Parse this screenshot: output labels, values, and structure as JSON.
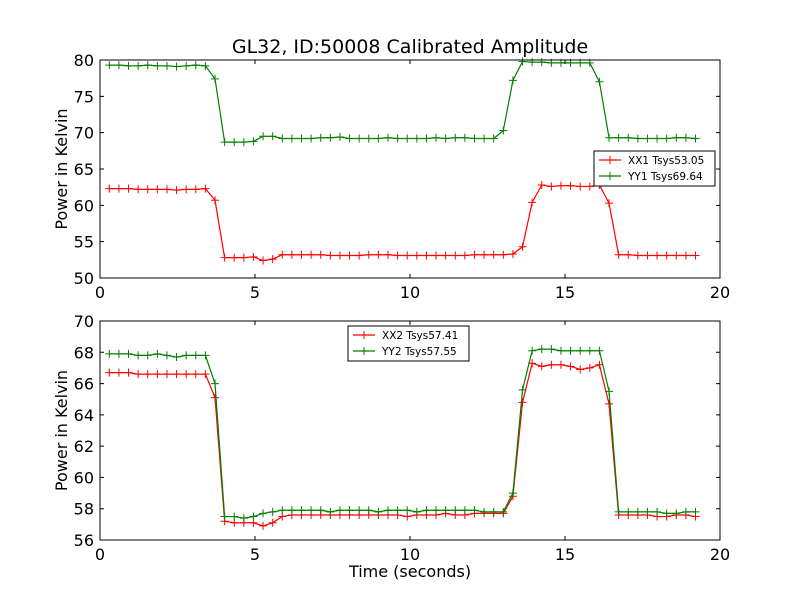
{
  "chart_data": [
    {
      "type": "line",
      "title": "GL32, ID:50008 Calibrated Amplitude",
      "xlabel": "",
      "ylabel": "Power in Kelvin",
      "xlim": [
        0,
        20
      ],
      "ylim": [
        50,
        80
      ],
      "xticks": [
        "0",
        "5",
        "10",
        "15",
        "20"
      ],
      "yticks": [
        "50",
        "55",
        "60",
        "65",
        "70",
        "75",
        "80"
      ],
      "grid": false,
      "legend_position": "center-right",
      "x": [
        0.3,
        0.61,
        0.92,
        1.23,
        1.54,
        1.85,
        2.16,
        2.47,
        2.78,
        3.09,
        3.4,
        3.71,
        4.02,
        4.33,
        4.64,
        4.95,
        5.26,
        5.57,
        5.88,
        6.19,
        6.5,
        6.81,
        7.12,
        7.43,
        7.74,
        8.05,
        8.36,
        8.67,
        8.98,
        9.29,
        9.6,
        9.91,
        10.22,
        10.53,
        10.84,
        11.15,
        11.46,
        11.77,
        12.08,
        12.39,
        12.7,
        13.01,
        13.32,
        13.63,
        13.94,
        14.25,
        14.56,
        14.87,
        15.18,
        15.49,
        15.8,
        16.11,
        16.42,
        16.73,
        17.04,
        17.35,
        17.66,
        17.97,
        18.28,
        18.59,
        18.9,
        19.21
      ],
      "series": [
        {
          "name": "XX1 Tsys53.05",
          "color": "#ff0000",
          "values": [
            62.3,
            62.3,
            62.3,
            62.2,
            62.2,
            62.2,
            62.2,
            62.1,
            62.2,
            62.2,
            62.3,
            60.7,
            52.8,
            52.8,
            52.8,
            52.9,
            52.4,
            52.6,
            53.2,
            53.2,
            53.2,
            53.2,
            53.2,
            53.1,
            53.1,
            53.1,
            53.1,
            53.2,
            53.2,
            53.2,
            53.1,
            53.1,
            53.1,
            53.1,
            53.1,
            53.1,
            53.1,
            53.1,
            53.2,
            53.2,
            53.2,
            53.2,
            53.3,
            54.3,
            60.4,
            62.8,
            62.6,
            62.7,
            62.7,
            62.6,
            62.6,
            62.8,
            60.3,
            53.2,
            53.2,
            53.1,
            53.1,
            53.1,
            53.1,
            53.1,
            53.1,
            53.1
          ]
        },
        {
          "name": "YY1 Tsys69.64",
          "color": "#008000",
          "values": [
            79.3,
            79.3,
            79.2,
            79.2,
            79.3,
            79.2,
            79.2,
            79.1,
            79.2,
            79.3,
            79.2,
            77.4,
            68.7,
            68.7,
            68.7,
            68.8,
            69.5,
            69.5,
            69.2,
            69.2,
            69.2,
            69.2,
            69.3,
            69.3,
            69.4,
            69.2,
            69.2,
            69.2,
            69.2,
            69.3,
            69.2,
            69.2,
            69.2,
            69.2,
            69.3,
            69.2,
            69.3,
            69.3,
            69.2,
            69.2,
            69.2,
            70.3,
            77.2,
            79.8,
            79.7,
            79.7,
            79.6,
            79.6,
            79.6,
            79.6,
            79.6,
            77.0,
            69.3,
            69.3,
            69.3,
            69.2,
            69.2,
            69.2,
            69.2,
            69.3,
            69.3,
            69.2
          ]
        }
      ]
    },
    {
      "type": "line",
      "title": "",
      "xlabel": "Time (seconds)",
      "ylabel": "Power in Kelvin",
      "xlim": [
        0,
        20
      ],
      "ylim": [
        56,
        70
      ],
      "xticks": [
        "0",
        "5",
        "10",
        "15",
        "20"
      ],
      "yticks": [
        "56",
        "58",
        "60",
        "62",
        "64",
        "66",
        "68",
        "70"
      ],
      "grid": false,
      "legend_position": "top-center",
      "x": [
        0.3,
        0.61,
        0.92,
        1.23,
        1.54,
        1.85,
        2.16,
        2.47,
        2.78,
        3.09,
        3.4,
        3.71,
        4.02,
        4.33,
        4.64,
        4.95,
        5.26,
        5.57,
        5.88,
        6.19,
        6.5,
        6.81,
        7.12,
        7.43,
        7.74,
        8.05,
        8.36,
        8.67,
        8.98,
        9.29,
        9.6,
        9.91,
        10.22,
        10.53,
        10.84,
        11.15,
        11.46,
        11.77,
        12.08,
        12.39,
        12.7,
        13.01,
        13.32,
        13.63,
        13.94,
        14.25,
        14.56,
        14.87,
        15.18,
        15.49,
        15.8,
        16.11,
        16.42,
        16.73,
        17.04,
        17.35,
        17.66,
        17.97,
        18.28,
        18.59,
        18.9,
        19.21
      ],
      "series": [
        {
          "name": "XX2 Tsys57.41",
          "color": "#ff0000",
          "values": [
            66.7,
            66.7,
            66.7,
            66.6,
            66.6,
            66.6,
            66.6,
            66.6,
            66.6,
            66.6,
            66.6,
            65.1,
            57.2,
            57.1,
            57.1,
            57.1,
            56.9,
            57.1,
            57.5,
            57.6,
            57.6,
            57.6,
            57.6,
            57.6,
            57.6,
            57.6,
            57.6,
            57.6,
            57.6,
            57.6,
            57.6,
            57.5,
            57.6,
            57.6,
            57.6,
            57.7,
            57.6,
            57.6,
            57.7,
            57.7,
            57.7,
            57.7,
            58.8,
            64.8,
            67.3,
            67.1,
            67.2,
            67.2,
            67.1,
            66.9,
            67.0,
            67.2,
            64.7,
            57.6,
            57.6,
            57.6,
            57.6,
            57.5,
            57.5,
            57.6,
            57.6,
            57.5
          ]
        },
        {
          "name": "YY2 Tsys57.55",
          "color": "#008000",
          "values": [
            67.9,
            67.9,
            67.9,
            67.8,
            67.8,
            67.9,
            67.8,
            67.7,
            67.8,
            67.8,
            67.8,
            66.0,
            57.5,
            57.5,
            57.4,
            57.5,
            57.7,
            57.8,
            57.9,
            57.9,
            57.9,
            57.9,
            57.9,
            57.8,
            57.9,
            57.9,
            57.9,
            57.9,
            57.8,
            57.9,
            57.9,
            57.9,
            57.8,
            57.9,
            57.9,
            57.9,
            57.9,
            57.9,
            57.9,
            57.8,
            57.8,
            57.8,
            59.0,
            65.6,
            68.1,
            68.2,
            68.2,
            68.1,
            68.1,
            68.1,
            68.1,
            68.1,
            65.5,
            57.8,
            57.8,
            57.8,
            57.8,
            57.8,
            57.7,
            57.7,
            57.8,
            57.8
          ]
        }
      ]
    }
  ]
}
